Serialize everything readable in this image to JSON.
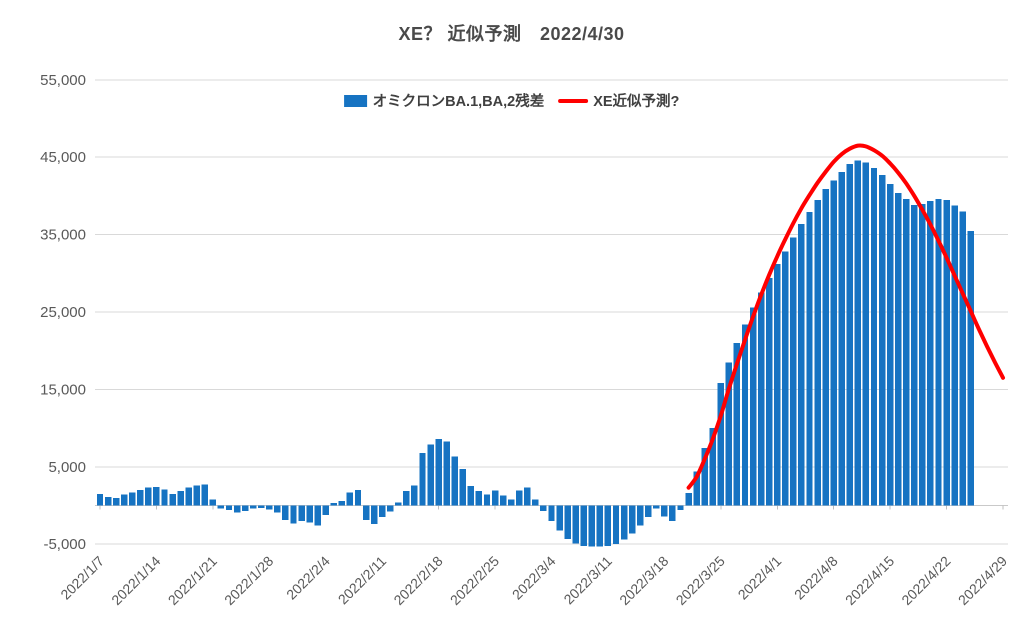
{
  "title": "XE？ 近似予測　2022/4/30",
  "legend": [
    {
      "label": "オミクロンBA.1,BA,2残差",
      "marker": "bar-swatch"
    },
    {
      "label": "XE近似予測?",
      "marker": "line-swatch"
    }
  ],
  "colors": {
    "bar": "#1673C2",
    "line": "#FF0000",
    "grid": "#D9D9D9",
    "axis_line": "#C9C9C9",
    "tick": "#BFBFBF",
    "axis_text": "#595959",
    "title_text": "#4A4A4A"
  },
  "chart_data": {
    "type": "bar",
    "title": "XE？ 近似予測　2022/4/30",
    "grid": "horizontal",
    "legend_position": "top-center",
    "ylim": [
      -5000,
      55000
    ],
    "y_ticks": [
      -5000,
      5000,
      15000,
      25000,
      35000,
      45000,
      55000
    ],
    "y_tick_labels": [
      "-5,000",
      "5,000",
      "15,000",
      "25,000",
      "35,000",
      "45,000",
      "55,000"
    ],
    "x_tick_every": 7,
    "categories": [
      "2022/1/7",
      "2022/1/8",
      "2022/1/9",
      "2022/1/10",
      "2022/1/11",
      "2022/1/12",
      "2022/1/13",
      "2022/1/14",
      "2022/1/15",
      "2022/1/16",
      "2022/1/17",
      "2022/1/18",
      "2022/1/19",
      "2022/1/20",
      "2022/1/21",
      "2022/1/22",
      "2022/1/23",
      "2022/1/24",
      "2022/1/25",
      "2022/1/26",
      "2022/1/27",
      "2022/1/28",
      "2022/1/29",
      "2022/1/30",
      "2022/1/31",
      "2022/2/1",
      "2022/2/2",
      "2022/2/3",
      "2022/2/4",
      "2022/2/5",
      "2022/2/6",
      "2022/2/7",
      "2022/2/8",
      "2022/2/9",
      "2022/2/10",
      "2022/2/11",
      "2022/2/12",
      "2022/2/13",
      "2022/2/14",
      "2022/2/15",
      "2022/2/16",
      "2022/2/17",
      "2022/2/18",
      "2022/2/19",
      "2022/2/20",
      "2022/2/21",
      "2022/2/22",
      "2022/2/23",
      "2022/2/24",
      "2022/2/25",
      "2022/2/26",
      "2022/2/27",
      "2022/2/28",
      "2022/3/1",
      "2022/3/2",
      "2022/3/3",
      "2022/3/4",
      "2022/3/5",
      "2022/3/6",
      "2022/3/7",
      "2022/3/8",
      "2022/3/9",
      "2022/3/10",
      "2022/3/11",
      "2022/3/12",
      "2022/3/13",
      "2022/3/14",
      "2022/3/15",
      "2022/3/16",
      "2022/3/17",
      "2022/3/18",
      "2022/3/19",
      "2022/3/20",
      "2022/3/21",
      "2022/3/22",
      "2022/3/23",
      "2022/3/24",
      "2022/3/25",
      "2022/3/26",
      "2022/3/27",
      "2022/3/28",
      "2022/3/29",
      "2022/3/30",
      "2022/3/31",
      "2022/4/1",
      "2022/4/2",
      "2022/4/3",
      "2022/4/4",
      "2022/4/5",
      "2022/4/6",
      "2022/4/7",
      "2022/4/8",
      "2022/4/9",
      "2022/4/10",
      "2022/4/11",
      "2022/4/12",
      "2022/4/13",
      "2022/4/14",
      "2022/4/15",
      "2022/4/16",
      "2022/4/17",
      "2022/4/18",
      "2022/4/19",
      "2022/4/20",
      "2022/4/21",
      "2022/4/22",
      "2022/4/23",
      "2022/4/24",
      "2022/4/25",
      "2022/4/26",
      "2022/4/27",
      "2022/4/28",
      "2022/4/29"
    ],
    "series": [
      {
        "name": "オミクロンBA.1,BA,2残差",
        "type": "bar",
        "values": [
          1500,
          1100,
          1000,
          1400,
          1700,
          2000,
          2300,
          2400,
          2100,
          1500,
          1900,
          2300,
          2600,
          2700,
          800,
          -400,
          -600,
          -900,
          -700,
          -400,
          -300,
          -500,
          -900,
          -1900,
          -2300,
          -2000,
          -2200,
          -2600,
          -1200,
          300,
          600,
          1700,
          2000,
          -1900,
          -2400,
          -1500,
          -800,
          400,
          1900,
          2600,
          6800,
          7900,
          8600,
          8300,
          6300,
          4700,
          2500,
          1850,
          1400,
          1950,
          1300,
          750,
          1950,
          2300,
          750,
          -700,
          -2000,
          -3200,
          -4300,
          -4900,
          -5200,
          -5300,
          -5300,
          -5200,
          -5000,
          -4400,
          -3600,
          -2600,
          -1500,
          -400,
          -1400,
          -2000,
          -600,
          1600,
          4400,
          7400,
          10000,
          15800,
          18500,
          21000,
          23400,
          25600,
          27500,
          29400,
          31200,
          32800,
          34600,
          36400,
          37900,
          39500,
          40900,
          42000,
          43100,
          44100,
          44600,
          44300,
          43600,
          42700,
          41550,
          40400,
          39580,
          38820,
          38950,
          39370,
          39580,
          39460,
          38740,
          37980,
          35450,
          null,
          null,
          null,
          null
        ]
      },
      {
        "name": "XE近似予測?",
        "type": "line",
        "start_category": "2022/3/21",
        "start_index": 73,
        "values": [
          2300,
          3700,
          6000,
          8600,
          11600,
          15100,
          18300,
          21400,
          24400,
          27200,
          29800,
          32200,
          34400,
          36500,
          38400,
          40100,
          41700,
          43100,
          44400,
          45400,
          46100,
          46500,
          46400,
          45900,
          45200,
          44200,
          43000,
          41600,
          40000,
          38200,
          36300,
          34200,
          32000,
          29700,
          27400,
          25100,
          22800,
          20600,
          18500,
          16500
        ]
      }
    ]
  }
}
